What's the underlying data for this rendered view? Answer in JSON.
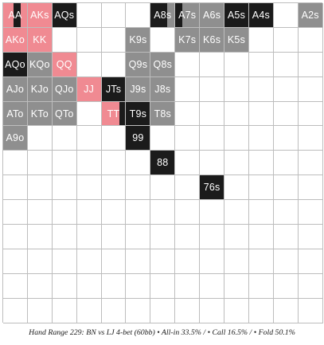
{
  "legend_colors": {
    "allin": "#f08a92",
    "call": "#1b1b1b",
    "fold": "#8f8f8f"
  },
  "rows": [
    [
      {
        "label": "AA",
        "mix": [
          {
            "a": "allin",
            "w": 0.45
          },
          {
            "a": "call",
            "w": 0.3
          },
          {
            "a": "allin",
            "w": 0.25
          }
        ]
      },
      {
        "label": "AKs",
        "mix": [
          {
            "a": "allin",
            "w": 1
          }
        ]
      },
      {
        "label": "AQs",
        "mix": [
          {
            "a": "call",
            "w": 1
          }
        ]
      },
      {
        "label": "",
        "mix": []
      },
      {
        "label": "",
        "mix": []
      },
      {
        "label": "",
        "mix": []
      },
      {
        "label": "A8s",
        "mix": [
          {
            "a": "call",
            "w": 0.7
          },
          {
            "a": "fold",
            "w": 0.3
          }
        ]
      },
      {
        "label": "A7s",
        "mix": [
          {
            "a": "call",
            "w": 0.3
          },
          {
            "a": "fold",
            "w": 0.7
          }
        ]
      },
      {
        "label": "A6s",
        "mix": [
          {
            "a": "fold",
            "w": 1
          }
        ]
      },
      {
        "label": "A5s",
        "mix": [
          {
            "a": "call",
            "w": 1
          }
        ]
      },
      {
        "label": "A4s",
        "mix": [
          {
            "a": "call",
            "w": 1
          }
        ]
      },
      {
        "label": "",
        "mix": []
      },
      {
        "label": "A2s",
        "mix": [
          {
            "a": "fold",
            "w": 1
          }
        ]
      }
    ],
    [
      {
        "label": "AKo",
        "mix": [
          {
            "a": "allin",
            "w": 1
          }
        ]
      },
      {
        "label": "KK",
        "mix": [
          {
            "a": "allin",
            "w": 1
          }
        ]
      },
      {
        "label": "",
        "mix": []
      },
      {
        "label": "",
        "mix": []
      },
      {
        "label": "",
        "mix": []
      },
      {
        "label": "K9s",
        "mix": [
          {
            "a": "fold",
            "w": 1
          }
        ]
      },
      {
        "label": "",
        "mix": []
      },
      {
        "label": "K7s",
        "mix": [
          {
            "a": "fold",
            "w": 1
          }
        ]
      },
      {
        "label": "K6s",
        "mix": [
          {
            "a": "fold",
            "w": 1
          }
        ]
      },
      {
        "label": "K5s",
        "mix": [
          {
            "a": "fold",
            "w": 1
          }
        ]
      },
      {
        "label": "",
        "mix": []
      },
      {
        "label": "",
        "mix": []
      },
      {
        "label": "",
        "mix": []
      }
    ],
    [
      {
        "label": "AQo",
        "mix": [
          {
            "a": "call",
            "w": 1
          }
        ]
      },
      {
        "label": "KQo",
        "mix": [
          {
            "a": "fold",
            "w": 1
          }
        ]
      },
      {
        "label": "QQ",
        "mix": [
          {
            "a": "allin",
            "w": 1
          }
        ]
      },
      {
        "label": "",
        "mix": []
      },
      {
        "label": "",
        "mix": []
      },
      {
        "label": "Q9s",
        "mix": [
          {
            "a": "fold",
            "w": 1
          }
        ]
      },
      {
        "label": "Q8s",
        "mix": [
          {
            "a": "fold",
            "w": 1
          }
        ]
      },
      {
        "label": "",
        "mix": []
      },
      {
        "label": "",
        "mix": []
      },
      {
        "label": "",
        "mix": []
      },
      {
        "label": "",
        "mix": []
      },
      {
        "label": "",
        "mix": []
      },
      {
        "label": "",
        "mix": []
      }
    ],
    [
      {
        "label": "AJo",
        "mix": [
          {
            "a": "fold",
            "w": 1
          }
        ]
      },
      {
        "label": "KJo",
        "mix": [
          {
            "a": "fold",
            "w": 1
          }
        ]
      },
      {
        "label": "QJo",
        "mix": [
          {
            "a": "fold",
            "w": 1
          }
        ]
      },
      {
        "label": "JJ",
        "mix": [
          {
            "a": "allin",
            "w": 1
          }
        ]
      },
      {
        "label": "JTs",
        "mix": [
          {
            "a": "call",
            "w": 1
          }
        ]
      },
      {
        "label": "J9s",
        "mix": [
          {
            "a": "fold",
            "w": 1
          }
        ]
      },
      {
        "label": "J8s",
        "mix": [
          {
            "a": "fold",
            "w": 1
          }
        ]
      },
      {
        "label": "",
        "mix": []
      },
      {
        "label": "",
        "mix": []
      },
      {
        "label": "",
        "mix": []
      },
      {
        "label": "",
        "mix": []
      },
      {
        "label": "",
        "mix": []
      },
      {
        "label": "",
        "mix": []
      }
    ],
    [
      {
        "label": "ATo",
        "mix": [
          {
            "a": "fold",
            "w": 1
          }
        ]
      },
      {
        "label": "KTo",
        "mix": [
          {
            "a": "fold",
            "w": 1
          }
        ]
      },
      {
        "label": "QTo",
        "mix": [
          {
            "a": "fold",
            "w": 1
          }
        ]
      },
      {
        "label": "",
        "mix": []
      },
      {
        "label": "TT",
        "mix": [
          {
            "a": "allin",
            "w": 0.75
          },
          {
            "a": "call",
            "w": 0.25
          }
        ]
      },
      {
        "label": "T9s",
        "mix": [
          {
            "a": "call",
            "w": 1
          }
        ]
      },
      {
        "label": "T8s",
        "mix": [
          {
            "a": "fold",
            "w": 1
          }
        ]
      },
      {
        "label": "",
        "mix": []
      },
      {
        "label": "",
        "mix": []
      },
      {
        "label": "",
        "mix": []
      },
      {
        "label": "",
        "mix": []
      },
      {
        "label": "",
        "mix": []
      },
      {
        "label": "",
        "mix": []
      }
    ],
    [
      {
        "label": "A9o",
        "mix": [
          {
            "a": "fold",
            "w": 1
          }
        ]
      },
      {
        "label": "",
        "mix": []
      },
      {
        "label": "",
        "mix": []
      },
      {
        "label": "",
        "mix": []
      },
      {
        "label": "",
        "mix": []
      },
      {
        "label": "99",
        "mix": [
          {
            "a": "call",
            "w": 1
          }
        ]
      },
      {
        "label": "",
        "mix": []
      },
      {
        "label": "",
        "mix": []
      },
      {
        "label": "",
        "mix": []
      },
      {
        "label": "",
        "mix": []
      },
      {
        "label": "",
        "mix": []
      },
      {
        "label": "",
        "mix": []
      },
      {
        "label": "",
        "mix": []
      }
    ],
    [
      {
        "label": "",
        "mix": []
      },
      {
        "label": "",
        "mix": []
      },
      {
        "label": "",
        "mix": []
      },
      {
        "label": "",
        "mix": []
      },
      {
        "label": "",
        "mix": []
      },
      {
        "label": "",
        "mix": []
      },
      {
        "label": "88",
        "mix": [
          {
            "a": "call",
            "w": 1
          }
        ]
      },
      {
        "label": "",
        "mix": []
      },
      {
        "label": "",
        "mix": []
      },
      {
        "label": "",
        "mix": []
      },
      {
        "label": "",
        "mix": []
      },
      {
        "label": "",
        "mix": []
      },
      {
        "label": "",
        "mix": []
      }
    ],
    [
      {
        "label": "",
        "mix": []
      },
      {
        "label": "",
        "mix": []
      },
      {
        "label": "",
        "mix": []
      },
      {
        "label": "",
        "mix": []
      },
      {
        "label": "",
        "mix": []
      },
      {
        "label": "",
        "mix": []
      },
      {
        "label": "",
        "mix": []
      },
      {
        "label": "",
        "mix": []
      },
      {
        "label": "76s",
        "mix": [
          {
            "a": "call",
            "w": 1
          }
        ]
      },
      {
        "label": "",
        "mix": []
      },
      {
        "label": "",
        "mix": []
      },
      {
        "label": "",
        "mix": []
      },
      {
        "label": "",
        "mix": []
      }
    ],
    [
      {
        "label": "",
        "mix": []
      },
      {
        "label": "",
        "mix": []
      },
      {
        "label": "",
        "mix": []
      },
      {
        "label": "",
        "mix": []
      },
      {
        "label": "",
        "mix": []
      },
      {
        "label": "",
        "mix": []
      },
      {
        "label": "",
        "mix": []
      },
      {
        "label": "",
        "mix": []
      },
      {
        "label": "",
        "mix": []
      },
      {
        "label": "",
        "mix": []
      },
      {
        "label": "",
        "mix": []
      },
      {
        "label": "",
        "mix": []
      },
      {
        "label": "",
        "mix": []
      }
    ],
    [
      {
        "label": "",
        "mix": []
      },
      {
        "label": "",
        "mix": []
      },
      {
        "label": "",
        "mix": []
      },
      {
        "label": "",
        "mix": []
      },
      {
        "label": "",
        "mix": []
      },
      {
        "label": "",
        "mix": []
      },
      {
        "label": "",
        "mix": []
      },
      {
        "label": "",
        "mix": []
      },
      {
        "label": "",
        "mix": []
      },
      {
        "label": "",
        "mix": []
      },
      {
        "label": "",
        "mix": []
      },
      {
        "label": "",
        "mix": []
      },
      {
        "label": "",
        "mix": []
      }
    ],
    [
      {
        "label": "",
        "mix": []
      },
      {
        "label": "",
        "mix": []
      },
      {
        "label": "",
        "mix": []
      },
      {
        "label": "",
        "mix": []
      },
      {
        "label": "",
        "mix": []
      },
      {
        "label": "",
        "mix": []
      },
      {
        "label": "",
        "mix": []
      },
      {
        "label": "",
        "mix": []
      },
      {
        "label": "",
        "mix": []
      },
      {
        "label": "",
        "mix": []
      },
      {
        "label": "",
        "mix": []
      },
      {
        "label": "",
        "mix": []
      },
      {
        "label": "",
        "mix": []
      }
    ],
    [
      {
        "label": "",
        "mix": []
      },
      {
        "label": "",
        "mix": []
      },
      {
        "label": "",
        "mix": []
      },
      {
        "label": "",
        "mix": []
      },
      {
        "label": "",
        "mix": []
      },
      {
        "label": "",
        "mix": []
      },
      {
        "label": "",
        "mix": []
      },
      {
        "label": "",
        "mix": []
      },
      {
        "label": "",
        "mix": []
      },
      {
        "label": "",
        "mix": []
      },
      {
        "label": "",
        "mix": []
      },
      {
        "label": "",
        "mix": []
      },
      {
        "label": "",
        "mix": []
      }
    ],
    [
      {
        "label": "",
        "mix": []
      },
      {
        "label": "",
        "mix": []
      },
      {
        "label": "",
        "mix": []
      },
      {
        "label": "",
        "mix": []
      },
      {
        "label": "",
        "mix": []
      },
      {
        "label": "",
        "mix": []
      },
      {
        "label": "",
        "mix": []
      },
      {
        "label": "",
        "mix": []
      },
      {
        "label": "",
        "mix": []
      },
      {
        "label": "",
        "mix": []
      },
      {
        "label": "",
        "mix": []
      },
      {
        "label": "",
        "mix": []
      },
      {
        "label": "",
        "mix": []
      }
    ]
  ],
  "caption": "Hand Range 229: BN vs LJ 4-bet (60bb) • All-in 33.5% / • Call 16.5% / • Fold 50.1%"
}
